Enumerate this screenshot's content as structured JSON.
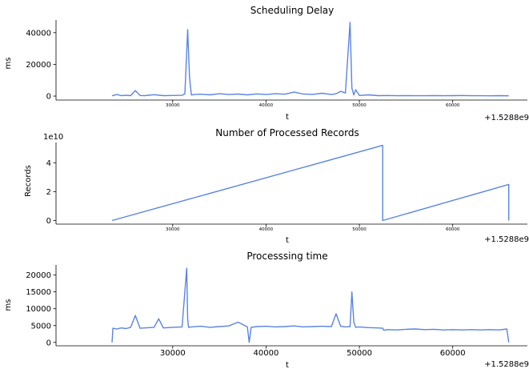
{
  "chart_data": [
    {
      "type": "line",
      "title": "Scheduling Delay",
      "xlabel": "t",
      "ylabel": "ms",
      "x_offset_label": "+1.5288e9",
      "xlim": [
        17500,
        68000
      ],
      "ylim": [
        -2500,
        48000
      ],
      "xticks": [
        30000,
        40000,
        50000,
        60000
      ],
      "xtick_labels": [
        "30000",
        "40000",
        "50000",
        "60000"
      ],
      "yticks": [
        0,
        20000,
        40000
      ],
      "ytick_labels": [
        "0",
        "20000",
        "40000"
      ],
      "color": "#5b84e0",
      "grid": false,
      "x": [
        23500,
        24000,
        24500,
        25000,
        25500,
        26000,
        26500,
        27000,
        28000,
        29000,
        30000,
        31000,
        31300,
        31600,
        31800,
        32000,
        32300,
        33000,
        34000,
        35000,
        36000,
        37000,
        38000,
        39000,
        40000,
        41000,
        42000,
        43000,
        44000,
        45000,
        46000,
        47000,
        47500,
        48000,
        48500,
        49000,
        49200,
        49400,
        49600,
        50000,
        51000,
        52000,
        53000,
        54000,
        55000,
        56000,
        57000,
        58000,
        59000,
        60000,
        61000,
        62000,
        63000,
        64000,
        65000,
        66000
      ],
      "y": [
        200,
        1000,
        300,
        500,
        300,
        3500,
        400,
        300,
        900,
        300,
        400,
        500,
        1500,
        42000,
        12000,
        700,
        1000,
        1200,
        800,
        1500,
        1000,
        1300,
        800,
        1400,
        1000,
        1500,
        1200,
        2500,
        1300,
        1100,
        1800,
        1000,
        1500,
        3000,
        2000,
        46500,
        5000,
        700,
        4000,
        400,
        800,
        300,
        400,
        250,
        300,
        250,
        250,
        300,
        250,
        300,
        400,
        250,
        250,
        200,
        300,
        200
      ]
    },
    {
      "type": "line",
      "title": "Number of Processed Records",
      "xlabel": "t",
      "ylabel": "Records",
      "y_scale_label": "1e10",
      "x_offset_label": "+1.5288e9",
      "xlim": [
        17500,
        68000
      ],
      "ylim": [
        -0.25,
        5.4
      ],
      "xticks": [
        30000,
        40000,
        50000,
        60000
      ],
      "xtick_labels": [
        "30000",
        "40000",
        "50000",
        "60000"
      ],
      "yticks": [
        0,
        2,
        4
      ],
      "ytick_labels": [
        "0",
        "2",
        "4"
      ],
      "color": "#5b84e0",
      "grid": false,
      "x": [
        23500,
        52500,
        52500,
        66000,
        66000
      ],
      "y": [
        0,
        5.2,
        0,
        2.5,
        0
      ]
    },
    {
      "type": "line",
      "title": "Processsing time",
      "xlabel": "t",
      "ylabel": "ms",
      "x_offset_label": "+1.5288e9",
      "xlim": [
        17500,
        68000
      ],
      "ylim": [
        -1000,
        23000
      ],
      "xticks": [
        30000,
        40000,
        50000,
        60000
      ],
      "xtick_labels": [
        "30000",
        "40000",
        "50000",
        "60000"
      ],
      "yticks": [
        0,
        5000,
        10000,
        15000,
        20000
      ],
      "ytick_labels": [
        "0",
        "5000",
        "10000",
        "15000",
        "20000"
      ],
      "color": "#5b84e0",
      "grid": false,
      "x": [
        23500,
        23600,
        24000,
        24500,
        25000,
        25500,
        26000,
        26500,
        27000,
        28000,
        28500,
        29000,
        30000,
        31000,
        31500,
        31600,
        31700,
        32000,
        33000,
        34000,
        35000,
        36000,
        37000,
        38000,
        38200,
        38400,
        39000,
        40000,
        41000,
        42000,
        43000,
        44000,
        45000,
        46000,
        47000,
        47500,
        48000,
        48500,
        49000,
        49200,
        49400,
        49600,
        50000,
        51000,
        52000,
        52500,
        52600,
        53000,
        54000,
        55000,
        56000,
        57000,
        58000,
        59000,
        60000,
        61000,
        62000,
        63000,
        64000,
        65000,
        65800,
        66000
      ],
      "y": [
        0,
        4200,
        4000,
        4300,
        4100,
        4500,
        8000,
        4200,
        4300,
        4500,
        7000,
        4300,
        4500,
        4600,
        22000,
        7000,
        4500,
        4600,
        4800,
        4500,
        4700,
        4900,
        6000,
        4600,
        0,
        4500,
        4700,
        4800,
        4600,
        4700,
        4900,
        4600,
        4700,
        4800,
        4700,
        8500,
        4800,
        4600,
        4700,
        15000,
        6000,
        4500,
        4600,
        4400,
        4300,
        4200,
        3600,
        3800,
        3700,
        3900,
        4000,
        3800,
        3900,
        3700,
        3800,
        3700,
        3800,
        3700,
        3800,
        3700,
        4000,
        0
      ]
    }
  ]
}
